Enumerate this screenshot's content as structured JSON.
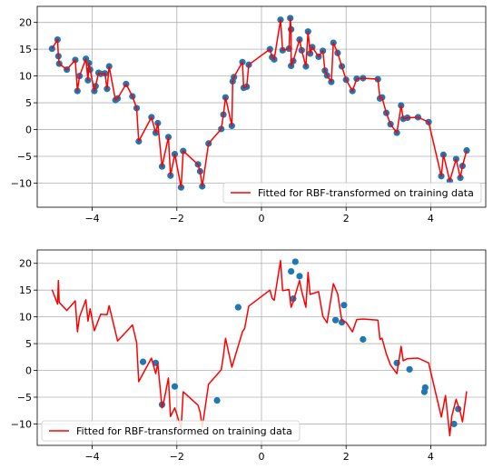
{
  "chart_data": [
    {
      "type": "scatter",
      "title": "",
      "xlabel": "",
      "ylabel": "",
      "xlim": [
        -5.3,
        5.3
      ],
      "ylim": [
        -14.5,
        23
      ],
      "xticks": [
        -4,
        -2,
        0,
        2,
        4
      ],
      "xtick_labels": [
        "−4",
        "−2",
        "0",
        "2",
        "4"
      ],
      "yticks": [
        -10,
        -5,
        0,
        5,
        10,
        15,
        20
      ],
      "ytick_labels": [
        "−10",
        "−5",
        "0",
        "5",
        "10",
        "15",
        "20"
      ],
      "grid": true,
      "legend_position": "lower right",
      "legend_label": "Fitted for RBF-transformed on training data",
      "point_color": "#1f77b4",
      "line_color": "#ff0000",
      "points": [
        [
          -4.95,
          15.1
        ],
        [
          -4.82,
          16.8
        ],
        [
          -4.8,
          13.7
        ],
        [
          -4.78,
          12.3
        ],
        [
          -4.6,
          11.2
        ],
        [
          -4.4,
          13.0
        ],
        [
          -4.35,
          7.2
        ],
        [
          -4.3,
          10.0
        ],
        [
          -4.15,
          13.2
        ],
        [
          -4.1,
          9.2
        ],
        [
          -4.08,
          12.4
        ],
        [
          -4.05,
          11.2
        ],
        [
          -3.95,
          7.2
        ],
        [
          -3.92,
          8.1
        ],
        [
          -3.85,
          10.6
        ],
        [
          -3.8,
          10.4
        ],
        [
          -3.7,
          10.5
        ],
        [
          -3.65,
          7.6
        ],
        [
          -3.6,
          11.8
        ],
        [
          -3.45,
          5.5
        ],
        [
          -3.4,
          5.8
        ],
        [
          -3.2,
          8.5
        ],
        [
          -3.05,
          6.2
        ],
        [
          -2.95,
          4.0
        ],
        [
          -2.9,
          -2.2
        ],
        [
          -2.6,
          2.3
        ],
        [
          -2.5,
          -0.6
        ],
        [
          -2.45,
          1.2
        ],
        [
          -2.35,
          -6.9
        ],
        [
          -2.2,
          -1.4
        ],
        [
          -2.15,
          -8.6
        ],
        [
          -2.05,
          -4.6
        ],
        [
          -1.9,
          -10.8
        ],
        [
          -1.85,
          -4.0
        ],
        [
          -1.5,
          -6.5
        ],
        [
          -1.45,
          -7.8
        ],
        [
          -1.4,
          -10.6
        ],
        [
          -1.25,
          -2.6
        ],
        [
          -0.95,
          0.1
        ],
        [
          -0.9,
          2.8
        ],
        [
          -0.85,
          6.0
        ],
        [
          -0.7,
          0.7
        ],
        [
          -0.68,
          9.0
        ],
        [
          -0.65,
          9.8
        ],
        [
          -0.45,
          12.6
        ],
        [
          -0.42,
          7.8
        ],
        [
          -0.35,
          8.0
        ],
        [
          -0.3,
          12.1
        ],
        [
          0.2,
          15.0
        ],
        [
          0.25,
          13.5
        ],
        [
          0.3,
          13.1
        ],
        [
          0.45,
          20.5
        ],
        [
          0.5,
          14.8
        ],
        [
          0.65,
          15.1
        ],
        [
          0.68,
          20.8
        ],
        [
          0.7,
          18.7
        ],
        [
          0.7,
          11.9
        ],
        [
          0.75,
          12.8
        ],
        [
          0.9,
          16.8
        ],
        [
          0.95,
          14.8
        ],
        [
          1.05,
          11.8
        ],
        [
          1.1,
          18.3
        ],
        [
          1.15,
          14.2
        ],
        [
          1.2,
          15.4
        ],
        [
          1.35,
          13.6
        ],
        [
          1.45,
          14.7
        ],
        [
          1.5,
          11.0
        ],
        [
          1.55,
          10.1
        ],
        [
          1.65,
          8.9
        ],
        [
          1.7,
          16.2
        ],
        [
          1.8,
          14.3
        ],
        [
          1.9,
          11.8
        ],
        [
          2.0,
          9.3
        ],
        [
          2.15,
          7.2
        ],
        [
          2.25,
          9.5
        ],
        [
          2.4,
          9.6
        ],
        [
          2.75,
          9.4
        ],
        [
          2.8,
          5.8
        ],
        [
          2.85,
          6.0
        ],
        [
          2.95,
          3.1
        ],
        [
          3.05,
          1.0
        ],
        [
          3.2,
          -0.6
        ],
        [
          3.3,
          4.5
        ],
        [
          3.35,
          2.0
        ],
        [
          3.45,
          2.2
        ],
        [
          3.7,
          2.3
        ],
        [
          3.95,
          1.4
        ],
        [
          4.25,
          -8.7
        ],
        [
          4.3,
          -4.7
        ],
        [
          4.45,
          -9.6
        ],
        [
          4.6,
          -5.5
        ],
        [
          4.7,
          -9.0
        ],
        [
          4.75,
          -6.8
        ],
        [
          4.85,
          -3.9
        ]
      ],
      "line": [
        [
          -4.95,
          15.1
        ],
        [
          -4.82,
          16.8
        ],
        [
          -4.8,
          13.7
        ],
        [
          -4.78,
          12.3
        ],
        [
          -4.6,
          11.2
        ],
        [
          -4.4,
          13.0
        ],
        [
          -4.35,
          7.2
        ],
        [
          -4.3,
          10.0
        ],
        [
          -4.15,
          13.2
        ],
        [
          -4.1,
          9.2
        ],
        [
          -4.08,
          12.4
        ],
        [
          -4.05,
          11.2
        ],
        [
          -3.95,
          7.2
        ],
        [
          -3.92,
          8.1
        ],
        [
          -3.85,
          10.6
        ],
        [
          -3.8,
          10.4
        ],
        [
          -3.7,
          10.5
        ],
        [
          -3.65,
          7.6
        ],
        [
          -3.6,
          11.8
        ],
        [
          -3.45,
          5.5
        ],
        [
          -3.4,
          5.8
        ],
        [
          -3.2,
          8.5
        ],
        [
          -3.05,
          6.2
        ],
        [
          -2.95,
          4.0
        ],
        [
          -2.9,
          -2.2
        ],
        [
          -2.6,
          2.3
        ],
        [
          -2.5,
          -0.6
        ],
        [
          -2.45,
          1.2
        ],
        [
          -2.35,
          -6.9
        ],
        [
          -2.2,
          -1.4
        ],
        [
          -2.15,
          -8.6
        ],
        [
          -2.05,
          -4.6
        ],
        [
          -1.9,
          -10.8
        ],
        [
          -1.85,
          -4.0
        ],
        [
          -1.5,
          -6.5
        ],
        [
          -1.45,
          -7.8
        ],
        [
          -1.4,
          -10.6
        ],
        [
          -1.25,
          -2.6
        ],
        [
          -0.95,
          0.1
        ],
        [
          -0.9,
          2.8
        ],
        [
          -0.85,
          6.0
        ],
        [
          -0.7,
          0.7
        ],
        [
          -0.68,
          9.0
        ],
        [
          -0.65,
          9.8
        ],
        [
          -0.45,
          12.6
        ],
        [
          -0.42,
          7.8
        ],
        [
          -0.35,
          8.0
        ],
        [
          -0.3,
          12.1
        ],
        [
          0.2,
          15.0
        ],
        [
          0.25,
          13.5
        ],
        [
          0.3,
          13.1
        ],
        [
          0.45,
          20.5
        ],
        [
          0.5,
          14.8
        ],
        [
          0.65,
          15.1
        ],
        [
          0.68,
          20.8
        ],
        [
          0.7,
          18.7
        ],
        [
          0.7,
          11.9
        ],
        [
          0.75,
          12.8
        ],
        [
          0.9,
          16.8
        ],
        [
          0.95,
          14.8
        ],
        [
          1.05,
          11.8
        ],
        [
          1.1,
          18.3
        ],
        [
          1.15,
          14.2
        ],
        [
          1.2,
          15.4
        ],
        [
          1.35,
          13.6
        ],
        [
          1.45,
          14.7
        ],
        [
          1.5,
          11.0
        ],
        [
          1.55,
          10.1
        ],
        [
          1.65,
          8.9
        ],
        [
          1.7,
          16.2
        ],
        [
          1.8,
          14.3
        ],
        [
          1.9,
          11.8
        ],
        [
          2.0,
          9.3
        ],
        [
          2.15,
          7.2
        ],
        [
          2.25,
          9.5
        ],
        [
          2.4,
          9.6
        ],
        [
          2.75,
          9.4
        ],
        [
          2.8,
          5.8
        ],
        [
          2.85,
          6.0
        ],
        [
          2.95,
          3.1
        ],
        [
          3.05,
          1.0
        ],
        [
          3.2,
          -0.6
        ],
        [
          3.3,
          4.5
        ],
        [
          3.35,
          2.0
        ],
        [
          3.45,
          2.2
        ],
        [
          3.7,
          2.3
        ],
        [
          3.95,
          1.4
        ],
        [
          4.25,
          -8.7
        ],
        [
          4.3,
          -4.7
        ],
        [
          4.45,
          -9.6
        ],
        [
          4.6,
          -5.5
        ],
        [
          4.7,
          -9.0
        ],
        [
          4.75,
          -6.8
        ],
        [
          4.85,
          -3.9
        ]
      ]
    },
    {
      "type": "scatter",
      "title": "",
      "xlabel": "",
      "ylabel": "",
      "xlim": [
        -5.3,
        5.3
      ],
      "ylim": [
        -14,
        22.5
      ],
      "xticks": [
        -4,
        -2,
        0,
        2,
        4
      ],
      "xtick_labels": [
        "−4",
        "−2",
        "0",
        "2",
        "4"
      ],
      "yticks": [
        -10,
        -5,
        0,
        5,
        10,
        15,
        20
      ],
      "ytick_labels": [
        "−10",
        "−5",
        "0",
        "5",
        "10",
        "15",
        "20"
      ],
      "grid": true,
      "legend_position": "lower left",
      "legend_label": "Fitted for RBF-transformed on training data",
      "point_color": "#1f77b4",
      "line_color": "#ff0000",
      "points": [
        [
          -2.8,
          1.6
        ],
        [
          -2.5,
          1.4
        ],
        [
          -2.35,
          -6.4
        ],
        [
          -2.05,
          -3.0
        ],
        [
          -1.05,
          -5.6
        ],
        [
          -0.55,
          11.8
        ],
        [
          0.7,
          18.5
        ],
        [
          0.75,
          13.4
        ],
        [
          0.8,
          20.3
        ],
        [
          0.9,
          17.6
        ],
        [
          1.75,
          9.4
        ],
        [
          1.9,
          9.0
        ],
        [
          1.95,
          12.2
        ],
        [
          2.4,
          5.8
        ],
        [
          3.2,
          1.4
        ],
        [
          3.5,
          0.2
        ],
        [
          3.85,
          -4.0
        ],
        [
          3.87,
          -3.2
        ],
        [
          4.55,
          -10.0
        ],
        [
          4.65,
          -7.2
        ]
      ],
      "line": [
        [
          -4.95,
          15.1
        ],
        [
          -4.82,
          12.4
        ],
        [
          -4.8,
          16.8
        ],
        [
          -4.78,
          12.7
        ],
        [
          -4.6,
          11.2
        ],
        [
          -4.4,
          13.0
        ],
        [
          -4.35,
          7.2
        ],
        [
          -4.3,
          10.0
        ],
        [
          -4.15,
          13.2
        ],
        [
          -4.1,
          9.2
        ],
        [
          -4.05,
          11.5
        ],
        [
          -3.95,
          7.4
        ],
        [
          -3.8,
          10.5
        ],
        [
          -3.65,
          10.4
        ],
        [
          -3.6,
          12.1
        ],
        [
          -3.4,
          5.5
        ],
        [
          -3.2,
          7.2
        ],
        [
          -3.05,
          8.5
        ],
        [
          -2.95,
          5.2
        ],
        [
          -2.9,
          -2.1
        ],
        [
          -2.6,
          2.3
        ],
        [
          -2.5,
          -0.6
        ],
        [
          -2.45,
          1.3
        ],
        [
          -2.35,
          -7.0
        ],
        [
          -2.3,
          -5.5
        ],
        [
          -2.2,
          -1.4
        ],
        [
          -2.15,
          -8.6
        ],
        [
          -2.05,
          -7.0
        ],
        [
          -1.9,
          -10.8
        ],
        [
          -1.85,
          -4.0
        ],
        [
          -1.5,
          -6.5
        ],
        [
          -1.45,
          -7.8
        ],
        [
          -1.4,
          -10.6
        ],
        [
          -1.25,
          -2.6
        ],
        [
          -0.95,
          0.1
        ],
        [
          -0.9,
          2.8
        ],
        [
          -0.85,
          6.0
        ],
        [
          -0.7,
          0.6
        ],
        [
          -0.45,
          7.2
        ],
        [
          -0.4,
          7.8
        ],
        [
          -0.3,
          12.0
        ],
        [
          0.2,
          15.0
        ],
        [
          0.25,
          13.5
        ],
        [
          0.3,
          13.1
        ],
        [
          0.45,
          20.5
        ],
        [
          0.5,
          14.9
        ],
        [
          0.65,
          15.1
        ],
        [
          0.7,
          11.8
        ],
        [
          0.75,
          12.8
        ],
        [
          0.9,
          16.8
        ],
        [
          0.95,
          14.8
        ],
        [
          1.05,
          11.8
        ],
        [
          1.1,
          18.3
        ],
        [
          1.15,
          14.2
        ],
        [
          1.35,
          14.7
        ],
        [
          1.45,
          10.1
        ],
        [
          1.55,
          8.9
        ],
        [
          1.7,
          16.2
        ],
        [
          1.8,
          14.3
        ],
        [
          1.9,
          9.3
        ],
        [
          2.0,
          9.0
        ],
        [
          2.15,
          7.2
        ],
        [
          2.25,
          9.5
        ],
        [
          2.4,
          9.6
        ],
        [
          2.75,
          9.4
        ],
        [
          2.8,
          5.8
        ],
        [
          2.85,
          6.0
        ],
        [
          2.95,
          3.1
        ],
        [
          3.05,
          1.0
        ],
        [
          3.2,
          -0.6
        ],
        [
          3.3,
          4.5
        ],
        [
          3.35,
          1.8
        ],
        [
          3.45,
          2.2
        ],
        [
          3.7,
          2.3
        ],
        [
          3.95,
          1.4
        ],
        [
          4.25,
          -8.7
        ],
        [
          4.35,
          -4.7
        ],
        [
          4.45,
          -12.2
        ],
        [
          4.5,
          -8.5
        ],
        [
          4.6,
          -5.4
        ],
        [
          4.7,
          -7.8
        ],
        [
          4.75,
          -9.6
        ],
        [
          4.85,
          -3.9
        ]
      ]
    }
  ]
}
